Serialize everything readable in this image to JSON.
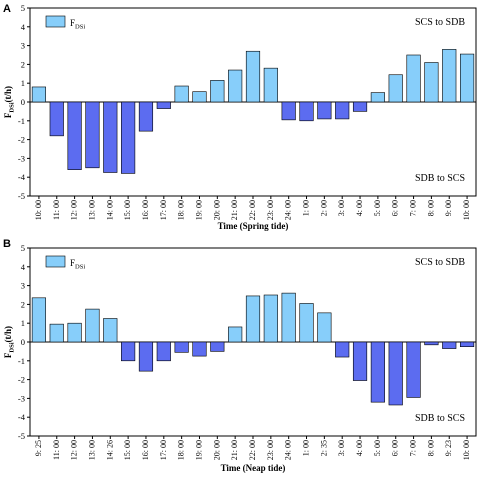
{
  "colors": {
    "positive": "#87CEFA",
    "negative": "#5C6CF0",
    "stroke": "#000000"
  },
  "chart_data": [
    {
      "type": "bar",
      "panel": "A",
      "legend": "F",
      "legend_sub": "DSi",
      "ylabel": "F",
      "ylabel_sub": "DSi",
      "ylabel_unit": "(t/h)",
      "xlabel": "Time (Spring tide)",
      "upper_label": "SCS to SDB",
      "lower_label": "SDB to SCS",
      "ylim": [
        -5,
        5
      ],
      "yticks": [
        5,
        4,
        3,
        2,
        1,
        0,
        -1,
        -2,
        -3,
        -4,
        -5
      ],
      "categories": [
        "10: 00",
        "11: 00",
        "12: 00",
        "13: 00",
        "14: 00",
        "15: 00",
        "16: 00",
        "17: 00",
        "18: 00",
        "19: 00",
        "20: 00",
        "21: 00",
        "22: 00",
        "23: 00",
        "24: 00",
        "1: 00",
        "2: 00",
        "3: 00",
        "4: 00",
        "5: 00",
        "6: 00",
        "7: 00",
        "8: 00",
        "9: 00",
        "10: 00"
      ],
      "values": [
        0.8,
        -1.8,
        -3.6,
        -3.5,
        -3.75,
        -3.8,
        -1.55,
        -0.35,
        0.85,
        0.55,
        1.15,
        1.7,
        2.7,
        1.8,
        -0.95,
        -1.0,
        -0.9,
        -0.9,
        -0.5,
        0.5,
        1.45,
        2.5,
        2.1,
        2.8,
        2.55
      ]
    },
    {
      "type": "bar",
      "panel": "B",
      "legend": "F",
      "legend_sub": "DSi",
      "ylabel": "F",
      "ylabel_sub": "DSi",
      "ylabel_unit": "(t/h)",
      "xlabel": "Time (Neap tide)",
      "upper_label": "SCS to SDB",
      "lower_label": "SDB to SCS",
      "ylim": [
        -5,
        5
      ],
      "yticks": [
        5,
        4,
        3,
        2,
        1,
        0,
        -1,
        -2,
        -3,
        -4,
        -5
      ],
      "categories": [
        "9: 25",
        "11: 00",
        "12: 00",
        "13: 00",
        "14: 26",
        "15: 00",
        "16: 00",
        "17: 00",
        "18: 00",
        "19: 00",
        "20: 00",
        "21: 00",
        "22: 00",
        "23: 00",
        "24: 00",
        "1: 00",
        "2: 35",
        "3: 00",
        "4: 00",
        "5: 00",
        "6: 00",
        "7: 00",
        "8: 00",
        "9: 23",
        "10: 00"
      ],
      "values": [
        2.35,
        0.95,
        1.0,
        1.75,
        1.25,
        -1.0,
        -1.55,
        -1.0,
        -0.55,
        -0.75,
        -0.5,
        0.8,
        2.45,
        2.5,
        2.6,
        2.05,
        1.55,
        -0.8,
        -2.05,
        -3.2,
        -3.35,
        -2.95,
        -0.15,
        -0.35,
        -0.25
      ]
    }
  ]
}
